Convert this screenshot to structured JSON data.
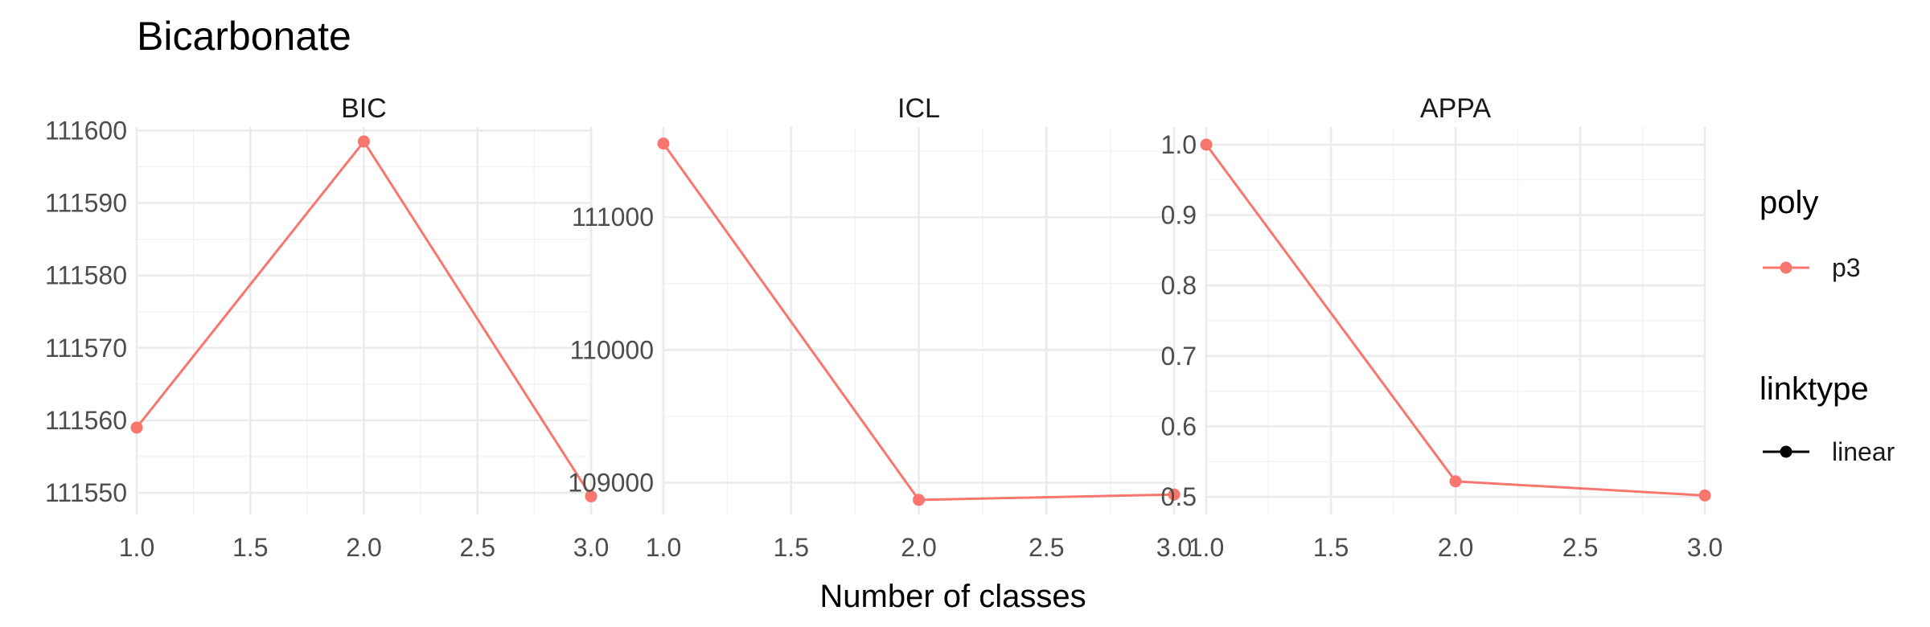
{
  "chart_data": {
    "type": "line",
    "title": "Bicarbonate",
    "xlabel": "Number of classes",
    "ylabel": "",
    "xlim": [
      1.0,
      3.0
    ],
    "x_ticks": [
      "1.0",
      "1.5",
      "2.0",
      "2.5",
      "3.0"
    ],
    "grid": true,
    "legend_position": "right",
    "panels": [
      {
        "label": "BIC",
        "series": [
          {
            "name": "p3",
            "x": [
              1,
              2,
              3
            ],
            "y": [
              111559.0,
              111598.5,
              111549.5
            ]
          }
        ],
        "ylim": [
          111547,
          111600.5
        ],
        "y_ticks": [
          111550,
          111560,
          111570,
          111580,
          111590,
          111600
        ],
        "y_tick_labels": [
          "111550",
          "111560",
          "111570",
          "111580",
          "111590",
          "111600"
        ]
      },
      {
        "label": "ICL",
        "series": [
          {
            "name": "p3",
            "x": [
              1,
              2,
              3
            ],
            "y": [
              111555,
              108870,
              108910
            ]
          }
        ],
        "ylim": [
          108760,
          111680
        ],
        "y_ticks": [
          109000,
          110000,
          111000
        ],
        "y_tick_labels": [
          "109000",
          "110000",
          "111000"
        ]
      },
      {
        "label": "APPA",
        "series": [
          {
            "name": "p3",
            "x": [
              1,
              2,
              3
            ],
            "y": [
              1.0,
              0.522,
              0.502
            ]
          }
        ],
        "ylim": [
          0.475,
          1.025
        ],
        "y_ticks": [
          0.5,
          0.6,
          0.7,
          0.8,
          0.9,
          1.0
        ],
        "y_tick_labels": [
          "0.5",
          "0.6",
          "0.7",
          "0.8",
          "0.9",
          "1.0"
        ]
      }
    ],
    "legend": [
      {
        "title": "poly",
        "entries": [
          {
            "label": "p3",
            "color": "#F8766D"
          }
        ]
      },
      {
        "title": "linktype",
        "entries": [
          {
            "label": "linear",
            "color": "#000000"
          }
        ]
      }
    ]
  },
  "colors": {
    "series": "#F8766D",
    "grid_major": "#ebebeb",
    "grid_minor": "#f2f2f2"
  }
}
